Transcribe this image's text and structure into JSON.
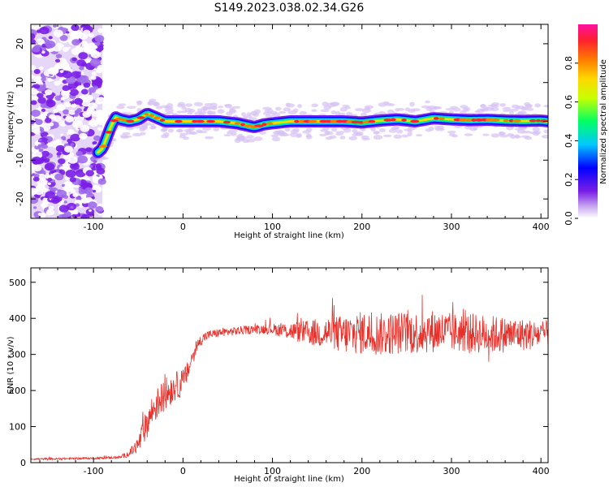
{
  "title": "S149.2023.038.02.34.G26",
  "chart_data": [
    {
      "type": "heatmap",
      "xlabel": "Height of straight line (km)",
      "ylabel": "Frequency (Hz)",
      "xlim": [
        -170,
        408
      ],
      "ylim": [
        -25,
        25
      ],
      "xticks": [
        -100,
        0,
        100,
        200,
        300,
        400
      ],
      "yticks": [
        -20,
        -10,
        0,
        10,
        20
      ],
      "xtick_labels": [
        "-100",
        "0",
        "100",
        "200",
        "300",
        "400"
      ],
      "ytick_labels": [
        "-20",
        "-10",
        "0",
        "10",
        "20"
      ],
      "colorbar": {
        "label": "Normalized spectral amplitude",
        "range": [
          0,
          1
        ],
        "ticks": [
          0.0,
          0.2,
          0.4,
          0.6,
          0.8
        ],
        "tick_labels": [
          "0.0",
          "0.2",
          "0.4",
          "0.6",
          "0.8"
        ],
        "colors": [
          "#ffffff",
          "#c9a8f0",
          "#7a1ee6",
          "#0000ff",
          "#00c8ff",
          "#00ff64",
          "#c8ff00",
          "#ffd700",
          "#ff7a00",
          "#ff2030",
          "#ff10a0"
        ]
      },
      "ridge": {
        "x": [
          -95,
          -90,
          -85,
          -80,
          -75,
          -70,
          -60,
          -50,
          -40,
          -30,
          -20,
          0,
          20,
          40,
          60,
          70,
          80,
          90,
          100,
          120,
          140,
          160,
          180,
          200,
          220,
          240,
          260,
          280,
          300,
          320,
          340,
          360,
          380,
          400,
          408
        ],
        "y": [
          -8,
          -7,
          -4,
          -1,
          1,
          0.5,
          0,
          0.5,
          2,
          1,
          0,
          0,
          0,
          0,
          -0.5,
          -1,
          -1.5,
          -0.8,
          -0.5,
          0,
          0,
          0,
          0,
          -0.3,
          0.2,
          0.5,
          0,
          0.8,
          0.5,
          0.3,
          0.4,
          0.2,
          0.1,
          0.2,
          0
        ]
      },
      "noise_region_x": [
        -170,
        -90
      ],
      "noise_region_y": [
        -25,
        25
      ]
    },
    {
      "type": "line",
      "xlabel": "Height of straight line (km)",
      "ylabel": "SNR (10 * v/v)",
      "xlim": [
        -170,
        408
      ],
      "ylim": [
        0,
        540
      ],
      "xticks": [
        -100,
        0,
        100,
        200,
        300,
        400
      ],
      "yticks": [
        0,
        100,
        200,
        300,
        400,
        500
      ],
      "xtick_labels": [
        "-100",
        "0",
        "100",
        "200",
        "300",
        "400"
      ],
      "ytick_labels": [
        "0",
        "100",
        "200",
        "300",
        "400",
        "500"
      ],
      "series": [
        {
          "color": "#e8302a",
          "x": [
            -170,
            -150,
            -130,
            -110,
            -90,
            -70,
            -60,
            -50,
            -45,
            -40,
            -35,
            -30,
            -25,
            -20,
            -15,
            -10,
            -5,
            0,
            5,
            10,
            15,
            20,
            25,
            30,
            40,
            60,
            80,
            100,
            120,
            140,
            160,
            180,
            200,
            220,
            240,
            260,
            280,
            300,
            320,
            340,
            360,
            380,
            400,
            408
          ],
          "y": [
            10,
            10,
            11,
            12,
            13,
            15,
            25,
            50,
            80,
            110,
            140,
            160,
            175,
            190,
            200,
            210,
            215,
            225,
            250,
            290,
            320,
            340,
            350,
            355,
            360,
            365,
            370,
            370,
            365,
            360,
            360,
            355,
            360,
            355,
            360,
            360,
            365,
            360,
            360,
            355,
            355,
            355,
            355,
            360
          ],
          "noise": [
            2,
            3,
            3,
            3,
            3,
            4,
            10,
            25,
            35,
            40,
            45,
            45,
            45,
            45,
            45,
            40,
            40,
            35,
            30,
            25,
            20,
            15,
            15,
            12,
            12,
            12,
            12,
            15,
            25,
            35,
            45,
            55,
            60,
            60,
            60,
            60,
            60,
            55,
            55,
            55,
            50,
            45,
            40,
            35
          ]
        }
      ]
    }
  ]
}
